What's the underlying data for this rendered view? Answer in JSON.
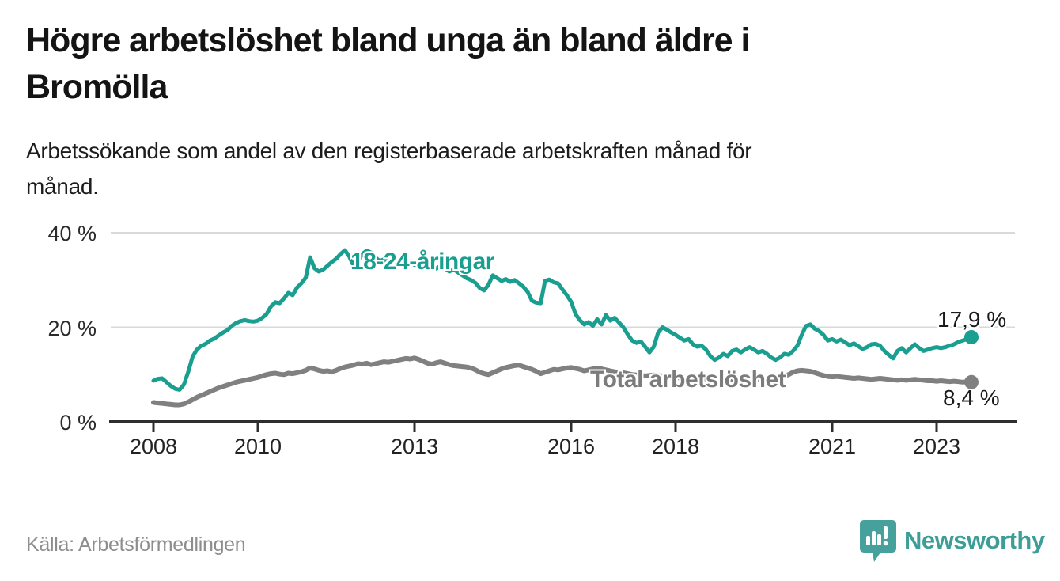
{
  "header": {
    "title_line1": "Högre arbetslöshet bland unga än bland äldre i",
    "title_line2": "Bromölla",
    "subtitle_line1": "Arbetssökande som andel av den registerbaserade arbetskraften månad för",
    "subtitle_line2": "månad."
  },
  "chart": {
    "y_tick_labels": [
      "40 %",
      "20 %",
      "0 %"
    ],
    "x_tick_labels": [
      "2008",
      "2010",
      "2013",
      "2016",
      "2018",
      "2021",
      "2023"
    ],
    "series_label_young": "18-24-åringar",
    "series_label_total": "Total arbetslöshet",
    "end_label_young": "17,9 %",
    "end_label_total": "8,4 %"
  },
  "footer": {
    "source": "Källa: Arbetsförmedlingen",
    "brand": "Newsworthy"
  },
  "colors": {
    "young_line": "#1a9e90",
    "total_line": "#808080",
    "grid": "#d9d9d9",
    "axis": "#2e2e2e",
    "brand": "#3d9e98"
  },
  "chart_data": {
    "type": "line",
    "title": "Högre arbetslöshet bland unga än bland äldre i Bromölla",
    "subtitle": "Arbetssökande som andel av den registerbaserade arbetskraften månad för månad.",
    "source": "Källa: Arbetsförmedlingen",
    "x_start_year": 2008,
    "x_step_months": 1,
    "x_end": "2023-09",
    "x_tick_years": [
      2008,
      2010,
      2013,
      2016,
      2018,
      2021,
      2023
    ],
    "ylabel": "",
    "ylim": [
      0,
      42
    ],
    "y_ticks_pct": [
      0,
      20,
      40
    ],
    "grid": true,
    "legend_position": "inline-annotations",
    "end_values": {
      "young": 17.9,
      "total": 8.4
    },
    "series": [
      {
        "name": "18-24-åringar",
        "color": "#1a9e90",
        "values": [
          8.7,
          9.1,
          9.2,
          8.4,
          7.6,
          7.0,
          6.8,
          7.9,
          10.6,
          13.8,
          15.3,
          16.1,
          16.5,
          17.2,
          17.6,
          18.3,
          18.9,
          19.4,
          20.3,
          20.9,
          21.3,
          21.5,
          21.3,
          21.2,
          21.4,
          22.0,
          22.8,
          24.4,
          25.3,
          25.1,
          26.1,
          27.3,
          26.8,
          28.4,
          29.3,
          30.5,
          34.8,
          32.5,
          31.8,
          32.2,
          33.0,
          33.8,
          34.5,
          35.5,
          36.3,
          35.0,
          33.0,
          34.0,
          35.5,
          36.2,
          35.8,
          34.8,
          34.0,
          34.4,
          33.6,
          34.2,
          33.6,
          34.8,
          34.2,
          33.8,
          33.2,
          33.8,
          34.3,
          33.6,
          33.0,
          32.4,
          33.0,
          32.5,
          31.8,
          32.3,
          31.6,
          31.0,
          30.4,
          30.0,
          29.4,
          28.3,
          27.8,
          29.0,
          31.0,
          30.4,
          29.8,
          30.2,
          29.6,
          30.0,
          29.3,
          28.6,
          27.5,
          25.6,
          25.2,
          25.1,
          29.8,
          30.1,
          29.5,
          29.3,
          28.0,
          26.8,
          25.4,
          22.8,
          21.5,
          20.6,
          21.1,
          20.3,
          21.7,
          20.6,
          22.6,
          21.4,
          22.0,
          21.0,
          20.0,
          18.5,
          17.2,
          16.7,
          17.0,
          15.9,
          14.7,
          15.9,
          18.9,
          20.0,
          19.5,
          18.9,
          18.4,
          17.8,
          17.2,
          17.5,
          16.4,
          15.9,
          16.1,
          15.3,
          13.9,
          13.1,
          13.6,
          14.4,
          13.9,
          15.0,
          15.3,
          14.7,
          15.3,
          15.8,
          15.3,
          14.7,
          15.0,
          14.4,
          13.6,
          13.1,
          13.6,
          14.4,
          14.2,
          15.0,
          16.1,
          18.4,
          20.3,
          20.6,
          19.7,
          19.2,
          18.4,
          17.2,
          17.5,
          17.0,
          17.4,
          16.8,
          16.2,
          16.6,
          16.0,
          15.4,
          15.8,
          16.4,
          16.5,
          16.1,
          15.0,
          14.2,
          13.4,
          15.0,
          15.6,
          14.7,
          15.6,
          16.4,
          15.6,
          15.0,
          15.3,
          15.6,
          15.8,
          15.6,
          15.8,
          16.1,
          16.4,
          16.9,
          17.2,
          17.5,
          17.9
        ]
      },
      {
        "name": "Total arbetslöshet",
        "color": "#808080",
        "values": [
          4.1,
          4.0,
          3.9,
          3.8,
          3.7,
          3.6,
          3.6,
          3.8,
          4.2,
          4.7,
          5.2,
          5.6,
          6.0,
          6.4,
          6.8,
          7.2,
          7.5,
          7.8,
          8.1,
          8.4,
          8.6,
          8.8,
          9.0,
          9.2,
          9.4,
          9.7,
          10.0,
          10.2,
          10.3,
          10.1,
          10.0,
          10.3,
          10.2,
          10.4,
          10.6,
          10.9,
          11.4,
          11.2,
          10.9,
          10.7,
          10.8,
          10.6,
          10.9,
          11.3,
          11.6,
          11.8,
          12.0,
          12.3,
          12.2,
          12.4,
          12.1,
          12.3,
          12.5,
          12.7,
          12.6,
          12.8,
          13.0,
          13.2,
          13.4,
          13.3,
          13.5,
          13.2,
          12.8,
          12.4,
          12.2,
          12.5,
          12.7,
          12.4,
          12.1,
          11.9,
          11.8,
          11.7,
          11.6,
          11.4,
          11.0,
          10.5,
          10.2,
          10.0,
          10.4,
          10.8,
          11.2,
          11.5,
          11.7,
          11.9,
          12.0,
          11.7,
          11.4,
          11.1,
          10.7,
          10.2,
          10.5,
          10.8,
          11.1,
          11.0,
          11.2,
          11.4,
          11.5,
          11.3,
          11.1,
          10.8,
          11.0,
          11.2,
          11.4,
          11.2,
          11.0,
          10.8,
          10.6,
          10.5,
          10.4,
          10.2,
          10.0,
          9.9,
          9.8,
          9.7,
          9.8,
          9.9,
          9.8,
          9.7,
          9.6,
          9.5,
          9.4,
          9.3,
          9.2,
          9.1,
          9.0,
          8.9,
          9.0,
          9.1,
          9.0,
          8.9,
          8.9,
          9.0,
          9.1,
          9.0,
          8.9,
          8.9,
          8.8,
          8.9,
          9.0,
          9.1,
          9.0,
          9.1,
          9.2,
          9.4,
          9.5,
          9.7,
          10.0,
          10.5,
          10.8,
          10.9,
          10.8,
          10.7,
          10.4,
          10.1,
          9.8,
          9.6,
          9.5,
          9.6,
          9.5,
          9.4,
          9.3,
          9.2,
          9.3,
          9.2,
          9.1,
          9.0,
          9.1,
          9.2,
          9.1,
          9.0,
          8.9,
          8.8,
          8.9,
          8.8,
          8.9,
          9.0,
          8.9,
          8.8,
          8.7,
          8.7,
          8.6,
          8.7,
          8.6,
          8.5,
          8.6,
          8.5,
          8.4,
          8.5,
          8.4
        ]
      }
    ]
  }
}
